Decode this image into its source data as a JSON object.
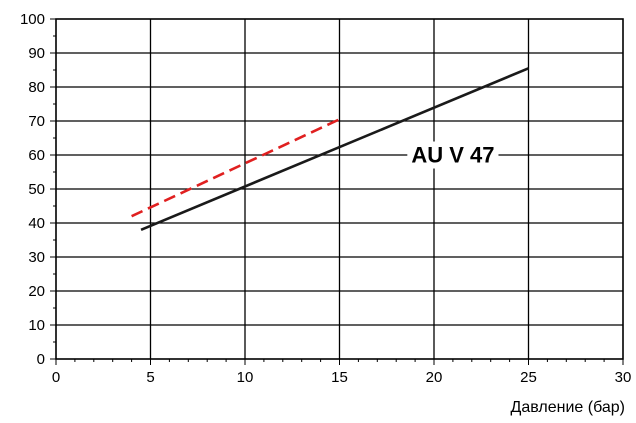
{
  "chart_data": {
    "type": "line",
    "xlabel": "Давление (бар)",
    "ylabel": "",
    "xlim": [
      0,
      30
    ],
    "ylim": [
      0,
      100
    ],
    "x_ticks": [
      0,
      5,
      10,
      15,
      20,
      25,
      30
    ],
    "y_ticks": [
      0,
      10,
      20,
      30,
      40,
      50,
      60,
      70,
      80,
      90,
      100
    ],
    "x_tick_labels": [
      "0",
      "5",
      "10",
      "15",
      "20",
      "25",
      "30"
    ],
    "y_tick_labels": [
      "0",
      "10",
      "20",
      "30",
      "40",
      "50",
      "60",
      "70",
      "80",
      "90",
      "100"
    ],
    "grid": true,
    "series": [
      {
        "x": [
          4.5,
          25
        ],
        "y": [
          38,
          85.5
        ],
        "color": "#1a1a1a",
        "style": "solid"
      },
      {
        "x": [
          4,
          15
        ],
        "y": [
          42,
          70.5
        ],
        "color": "#e02020",
        "style": "dashed"
      }
    ],
    "annotation": {
      "text": "AU V 47",
      "x": 21,
      "y": 59.5
    }
  }
}
